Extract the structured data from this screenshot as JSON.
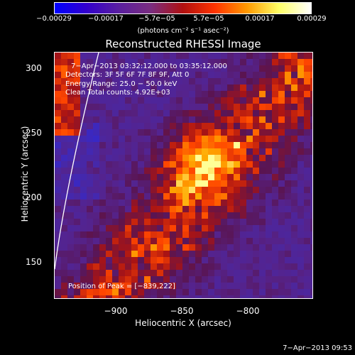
{
  "colorbar": {
    "ticks": [
      "−0.00029",
      "−0.00017",
      "−5.7e−05",
      "5.7e−05",
      "0.00017",
      "0.00029"
    ],
    "unit_label": "(photons cm⁻² s⁻¹ asec⁻²)",
    "colors": [
      "#0000ff",
      "#3300cc",
      "#5a1fa0",
      "#7a2d80",
      "#b01010",
      "#ff3300",
      "#ff9900",
      "#ffff66",
      "#ffffff"
    ]
  },
  "plot": {
    "title": "Reconstructed RHESSI Image",
    "annotations": {
      "time_range": "7−Apr−2013 03:32:12.000 to 03:35:12.000",
      "detectors": "Detectors: 3F 5F 6F 7F 8F 9F, Att 0",
      "energy_range": "Energy Range: 25.0 − 50.0 keV",
      "method": "Clean    Total counts: 4.92E+03",
      "peak": "Position of Peak = [−839,222]"
    },
    "xlabel": "Heliocentric X (arcsec)",
    "ylabel": "Heliocentric Y (arcsec)",
    "xticks": [
      "−900",
      "−850",
      "−800"
    ],
    "yticks": [
      "300",
      "250",
      "200",
      "150"
    ]
  },
  "timestamp": "7−Apr−2013 09:53"
}
